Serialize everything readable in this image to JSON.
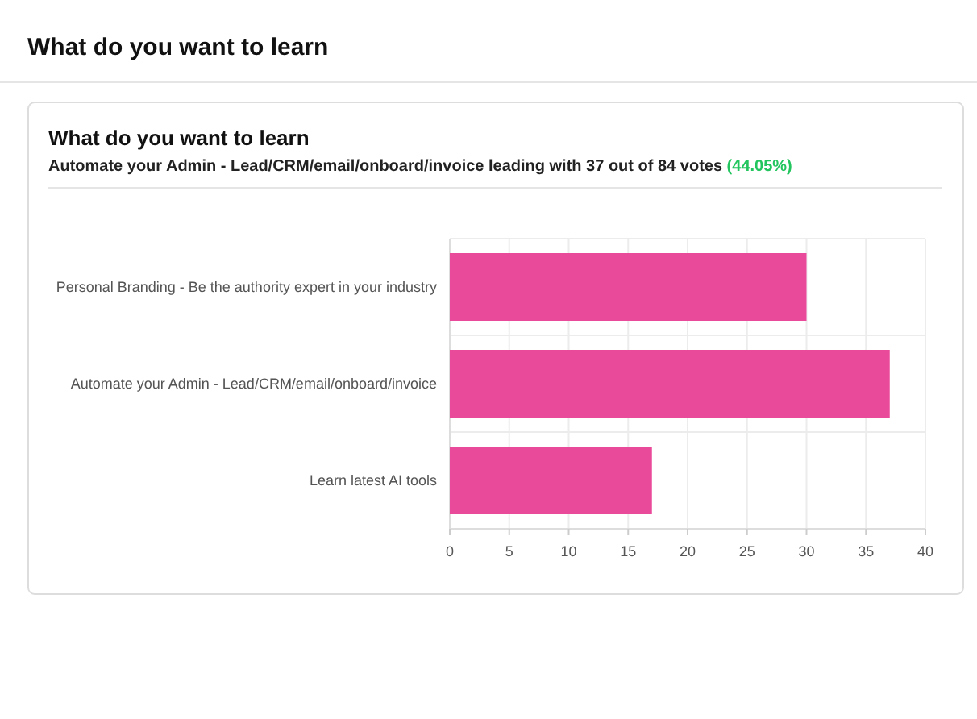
{
  "chart_data": {
    "type": "bar",
    "orientation": "horizontal",
    "title": "What do you want to learn",
    "subtitle": "Automate your Admin - Lead/CRM/email/onboard/invoice leading with 37 out of 84 votes (44.05%)",
    "annotations": [
      "What do you want to learn"
    ],
    "categories": [
      "Personal Branding - Be the authority expert in your industry",
      "Automate your Admin - Lead/CRM/email/onboard/invoice",
      "Learn latest AI tools"
    ],
    "values": [
      30,
      37,
      17
    ],
    "color": "#ea4a9a",
    "xlim": [
      0,
      40
    ],
    "xticks": [
      0,
      5,
      10,
      15,
      20,
      25,
      30,
      35,
      40
    ],
    "grid": true
  }
}
